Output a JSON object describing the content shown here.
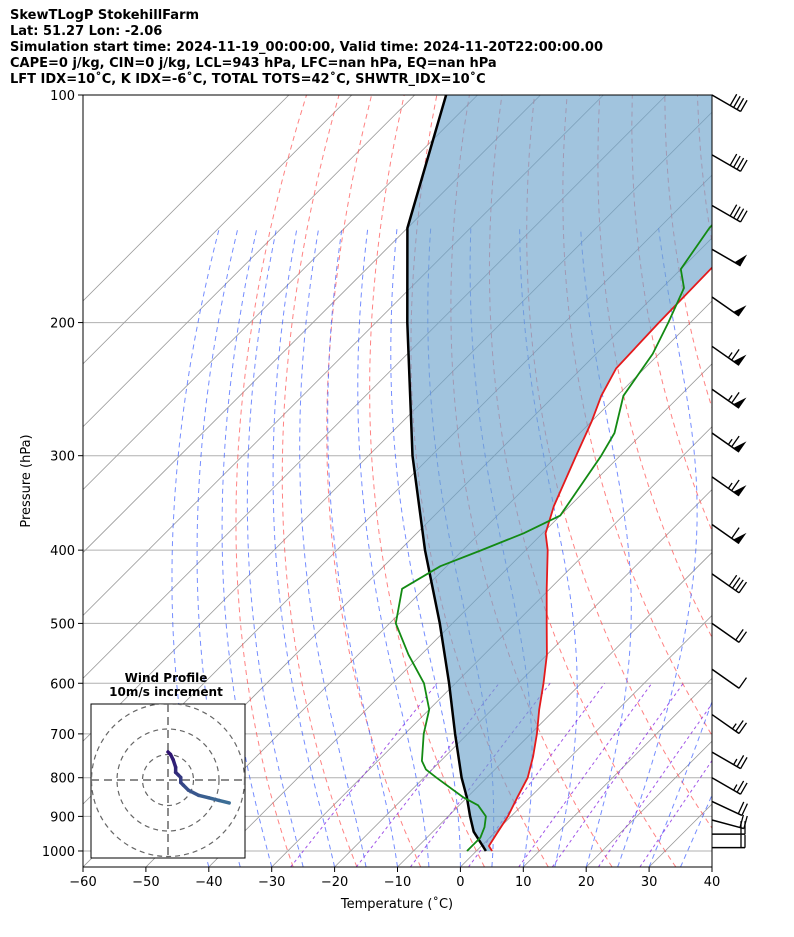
{
  "header": {
    "line1": "SkewTLogP StokehillFarm",
    "line2": "Lat: 51.27   Lon: -2.06",
    "line3": "Simulation start time: 2024-11-19_00:00:00, Valid time: 2024-11-20T22:00:00.00",
    "line4": "CAPE=0 j/kg, CIN=0 j/kg, LCL=943 hPa, LFC=nan hPa, EQ=nan hPa",
    "line5": "LFT IDX=10˚C, K IDX=-6˚C, TOTAL TOTS=42˚C, SHWTR_IDX=10˚C"
  },
  "chart_data": {
    "type": "skewt",
    "xlabel": "Temperature (˚C)",
    "ylabel": "Pressure (hPa)",
    "xlim": [
      -60,
      40
    ],
    "ylim": [
      1050,
      100
    ],
    "x_ticks": [
      -60,
      -50,
      -40,
      -30,
      -20,
      -10,
      0,
      10,
      20,
      30,
      40
    ],
    "x_tick_labels": [
      "−60",
      "−50",
      "−40",
      "−30",
      "−20",
      "−10",
      "0",
      "10",
      "20",
      "30",
      "40"
    ],
    "y_ticks": [
      1000,
      900,
      800,
      700,
      600,
      500,
      400,
      300,
      200,
      100
    ],
    "y_tick_labels": [
      "1000",
      "900",
      "800",
      "700",
      "600",
      "500",
      "400",
      "300",
      "200",
      "100"
    ],
    "grid": true,
    "colors": {
      "temperature": "#e41a1c",
      "dewpoint": "#138a13",
      "parcel": "#000000",
      "fill": "#6fa5cc",
      "dry_adiabat": "#ff4d4d",
      "moist_adiabat": "#3a5cff",
      "mixing_ratio": "#8a2be2",
      "isotherm": "#999999"
    },
    "series": [
      {
        "name": "temperature",
        "pressure": [
          1000,
          985,
          950,
          900,
          850,
          800,
          750,
          700,
          650,
          600,
          550,
          500,
          450,
          400,
          380,
          350,
          300,
          270,
          250,
          230,
          200,
          150,
          100
        ],
        "values": [
          2.5,
          1.2,
          0.5,
          -0.5,
          -2,
          -3.5,
          -6,
          -9,
          -12.5,
          -16,
          -20,
          -25,
          -30.5,
          -36.5,
          -39.5,
          -42.5,
          -47,
          -50,
          -52.5,
          -54.5,
          -55,
          -55.5,
          -56
        ]
      },
      {
        "name": "dewpoint",
        "pressure": [
          1000,
          960,
          930,
          900,
          870,
          850,
          800,
          780,
          760,
          700,
          650,
          600,
          550,
          500,
          450,
          420,
          400,
          380,
          360,
          300,
          280,
          250,
          220,
          200,
          180,
          170,
          150,
          120,
          100
        ],
        "values": [
          -1.5,
          -1.5,
          -2.5,
          -4,
          -7,
          -10.5,
          -18,
          -21,
          -23,
          -27,
          -30,
          -35,
          -42,
          -49,
          -53.5,
          -51,
          -47,
          -43,
          -40,
          -43,
          -44.5,
          -49,
          -51,
          -53.5,
          -56.5,
          -60,
          -62,
          -63,
          -64
        ]
      },
      {
        "name": "parcel",
        "pressure": [
          1000,
          943,
          900,
          850,
          800,
          700,
          600,
          500,
          400,
          300,
          200,
          150,
          100
        ],
        "values": [
          1.5,
          -3.5,
          -6.5,
          -10,
          -14,
          -22,
          -31,
          -42,
          -56,
          -73,
          -95,
          -110,
          -125
        ]
      }
    ],
    "wind_barbs": [
      {
        "p": 100,
        "speed": 40,
        "dir": 300
      },
      {
        "p": 120,
        "speed": 40,
        "dir": 300
      },
      {
        "p": 140,
        "speed": 40,
        "dir": 300
      },
      {
        "p": 160,
        "speed": 50,
        "dir": 300
      },
      {
        "p": 185,
        "speed": 50,
        "dir": 305
      },
      {
        "p": 215,
        "speed": 65,
        "dir": 305
      },
      {
        "p": 245,
        "speed": 65,
        "dir": 305
      },
      {
        "p": 280,
        "speed": 65,
        "dir": 305
      },
      {
        "p": 320,
        "speed": 65,
        "dir": 305
      },
      {
        "p": 370,
        "speed": 60,
        "dir": 305
      },
      {
        "p": 430,
        "speed": 40,
        "dir": 305
      },
      {
        "p": 500,
        "speed": 20,
        "dir": 305
      },
      {
        "p": 575,
        "speed": 10,
        "dir": 305
      },
      {
        "p": 660,
        "speed": 25,
        "dir": 305
      },
      {
        "p": 740,
        "speed": 25,
        "dir": 300
      },
      {
        "p": 800,
        "speed": 25,
        "dir": 300
      },
      {
        "p": 860,
        "speed": 20,
        "dir": 295
      },
      {
        "p": 910,
        "speed": 20,
        "dir": 285
      },
      {
        "p": 950,
        "speed": 20,
        "dir": 270
      },
      {
        "p": 990,
        "speed": 20,
        "dir": 270
      }
    ],
    "hodograph": {
      "title": "Wind Profile",
      "subtitle": "10m/s increment",
      "rings_ms": [
        10,
        20,
        30
      ],
      "u": [
        24,
        20,
        16,
        12,
        8,
        6,
        5,
        5,
        4,
        3,
        3,
        2,
        1,
        0
      ],
      "v": [
        -9,
        -8,
        -7,
        -6,
        -4,
        -2,
        -1,
        1,
        2,
        3,
        5,
        8,
        10,
        11
      ]
    }
  }
}
